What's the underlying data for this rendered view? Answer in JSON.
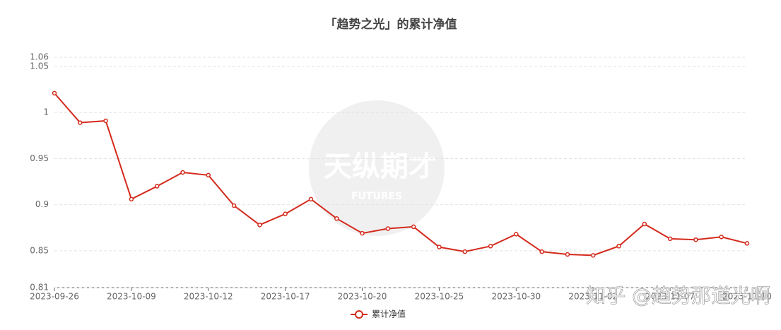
{
  "chart_data": {
    "type": "line",
    "title": "「趋势之光」的累计净值",
    "categories": [
      "2023-09-26",
      null,
      null,
      "2023-10-09",
      null,
      null,
      "2023-10-12",
      null,
      null,
      "2023-10-17",
      null,
      null,
      "2023-10-20",
      null,
      null,
      "2023-10-25",
      null,
      null,
      "2023-10-30",
      null,
      null,
      "2023-11-02",
      null,
      null,
      "2023-11-07",
      null,
      null,
      "2023-11-10"
    ],
    "series": [
      {
        "name": "累计净值",
        "color": "#d42a1c",
        "values": [
          1.021,
          0.989,
          0.991,
          0.906,
          0.92,
          0.935,
          0.932,
          0.899,
          0.878,
          0.89,
          0.906,
          0.885,
          0.869,
          0.874,
          0.876,
          0.854,
          0.849,
          0.855,
          0.868,
          0.849,
          0.846,
          0.845,
          0.855,
          0.879,
          0.863,
          0.862,
          0.865,
          0.858
        ]
      }
    ],
    "ylim": [
      0.81,
      1.06
    ],
    "yticks": [
      0.81,
      0.85,
      0.9,
      0.95,
      1,
      1.05,
      1.06
    ],
    "grid": true,
    "legend": "bottom",
    "watermark_logo": "天纵期才",
    "watermark_logo_sub": "FUTURES",
    "watermark": "知乎 @趋势那道光啊"
  }
}
